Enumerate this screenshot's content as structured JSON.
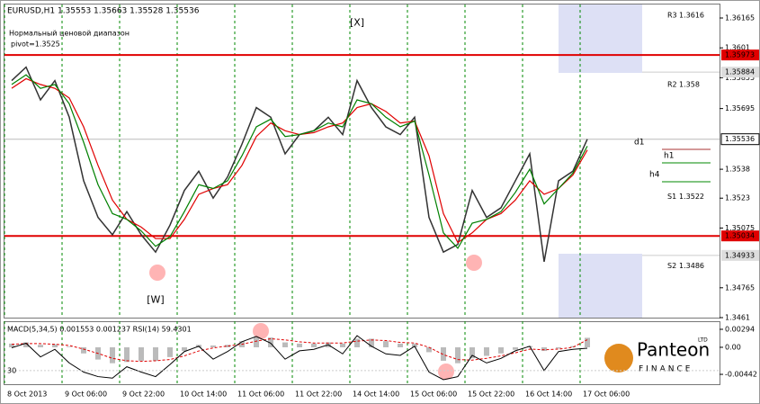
{
  "chart_data": {
    "type": "line",
    "title": "EURUSD,H1 1.35553 1.35663 1.35528 1.35536",
    "note_top": "Нормальный ценовой диапазон",
    "pivot_note": "pivot=1.3525",
    "annotations": [
      {
        "text": "[X]",
        "index": 24,
        "value": 1.3614
      },
      {
        "text": "[W]",
        "index": 10,
        "value": 1.347
      }
    ],
    "categories": [
      "8 Oct 2013",
      null,
      null,
      null,
      "9 Oct 06:00",
      null,
      null,
      null,
      "9 Oct 22:00",
      null,
      null,
      null,
      "10 Oct 14:00",
      null,
      null,
      null,
      "11 Oct 06:00",
      null,
      null,
      null,
      "11 Oct 22:00",
      null,
      null,
      null,
      "14 Oct 14:00",
      null,
      null,
      null,
      "15 Oct 06:00",
      null,
      null,
      null,
      "15 Oct 22:00",
      null,
      null,
      null,
      "16 Oct 14:00",
      null,
      null,
      null,
      "17 Oct 06:00",
      null,
      null,
      null,
      null,
      null,
      null,
      null,
      null,
      null
    ],
    "series": [
      {
        "name": "Close",
        "color": "#333333",
        "values": [
          1.3584,
          1.3591,
          1.3574,
          1.3584,
          1.3565,
          1.3532,
          1.3513,
          1.3504,
          1.3516,
          1.3504,
          1.3495,
          1.3509,
          1.3527,
          1.3537,
          1.3523,
          1.3534,
          1.3551,
          1.357,
          1.3565,
          1.3546,
          1.3556,
          1.3558,
          1.3565,
          1.3556,
          1.3584,
          1.357,
          1.356,
          1.3556,
          1.3565,
          1.3513,
          1.3495,
          1.3499,
          1.3527,
          1.3513,
          1.3518,
          1.3532,
          1.3546,
          1.349,
          1.3532,
          1.3537,
          1.35536,
          null,
          null,
          null,
          null,
          null,
          null,
          null,
          null,
          null
        ]
      },
      {
        "name": "MA slow",
        "color": "#e00000",
        "values": [
          1.358,
          1.3585,
          1.3582,
          1.358,
          1.3575,
          1.356,
          1.354,
          1.3522,
          1.3512,
          1.3508,
          1.3502,
          1.3502,
          1.3512,
          1.3525,
          1.3528,
          1.353,
          1.354,
          1.3555,
          1.3562,
          1.3558,
          1.3556,
          1.3557,
          1.356,
          1.3562,
          1.357,
          1.3572,
          1.3568,
          1.3562,
          1.3563,
          1.3545,
          1.3515,
          1.35,
          1.3505,
          1.3512,
          1.3515,
          1.3522,
          1.3532,
          1.3525,
          1.3528,
          1.3535,
          1.3548,
          null,
          null,
          null,
          null,
          null,
          null,
          null,
          null,
          null
        ]
      },
      {
        "name": "MA fast",
        "color": "#008000",
        "values": [
          1.3582,
          1.3587,
          1.358,
          1.3582,
          1.3572,
          1.3552,
          1.353,
          1.3515,
          1.3512,
          1.3506,
          1.3498,
          1.3503,
          1.3516,
          1.353,
          1.3528,
          1.3532,
          1.3545,
          1.356,
          1.3564,
          1.3555,
          1.3556,
          1.3558,
          1.3562,
          1.356,
          1.3574,
          1.3572,
          1.3565,
          1.356,
          1.3563,
          1.3535,
          1.3505,
          1.3497,
          1.351,
          1.3512,
          1.3516,
          1.3526,
          1.3538,
          1.352,
          1.3528,
          1.3536,
          1.355,
          null,
          null,
          null,
          null,
          null,
          null,
          null,
          null,
          null
        ]
      }
    ],
    "ylim": [
      1.3461,
      1.36235
    ],
    "yticks": [
      1.36165,
      1.3601,
      1.35855,
      1.35695,
      1.3538,
      1.3523,
      1.35075,
      1.34765,
      1.3461
    ],
    "levels": [
      1.35973,
      1.35034
    ],
    "level_color": "#e00000",
    "current_price": 1.35536,
    "zone_labels": [
      1.35884,
      1.34933
    ],
    "pivots": [
      {
        "name": "R3",
        "value": 1.3616
      },
      {
        "name": "R2",
        "value": 1.358
      },
      {
        "name": "S1",
        "value": 1.3522
      },
      {
        "name": "S2",
        "value": 1.3486
      }
    ],
    "timeframe_labels": [
      "d1",
      "h1",
      "h4"
    ],
    "indicator": {
      "title": "MACD(5,34,5) 0.001553 0.001237 RSI(14) 59.4301",
      "macd": [
        0.0006,
        0.0008,
        0.0004,
        0.0005,
        0.0001,
        -0.001,
        -0.002,
        -0.0026,
        -0.0024,
        -0.0022,
        -0.0022,
        -0.0016,
        -0.0006,
        0.0004,
        0.0003,
        0.0004,
        0.001,
        0.0016,
        0.0016,
        0.0008,
        0.0006,
        0.0006,
        0.0008,
        0.0006,
        0.0014,
        0.0014,
        0.001,
        0.0006,
        0.0006,
        -0.0008,
        -0.0022,
        -0.0026,
        -0.0018,
        -0.0014,
        -0.001,
        -0.0004,
        0.0002,
        -0.0006,
        -0.0002,
        0.0002,
        0.001553,
        null,
        null,
        null,
        null,
        null,
        null,
        null,
        null,
        null
      ],
      "signal": [
        0.0005,
        0.0006,
        0.0006,
        0.0005,
        0.0003,
        -0.0003,
        -0.001,
        -0.0018,
        -0.0022,
        -0.0023,
        -0.0022,
        -0.002,
        -0.0014,
        -0.0006,
        -0.0001,
        0.0002,
        0.0005,
        0.001,
        0.0014,
        0.0012,
        0.0009,
        0.0007,
        0.0007,
        0.0007,
        0.001,
        0.0012,
        0.0011,
        0.0008,
        0.0007,
        0.0,
        -0.0012,
        -0.002,
        -0.0021,
        -0.0018,
        -0.0014,
        -0.0009,
        -0.0003,
        -0.0004,
        -0.0003,
        0.0,
        0.001237,
        null,
        null,
        null,
        null,
        null,
        null,
        null,
        null,
        null
      ],
      "signal_color": "#e00000",
      "rsi": [
        60,
        66,
        48,
        58,
        40,
        28,
        22,
        20,
        35,
        28,
        22,
        38,
        55,
        62,
        45,
        55,
        68,
        75,
        66,
        45,
        56,
        58,
        64,
        52,
        76,
        62,
        52,
        50,
        62,
        28,
        18,
        22,
        50,
        40,
        46,
        56,
        62,
        30,
        55,
        58,
        59.4301,
        null,
        null,
        null,
        null,
        null,
        null,
        null,
        null,
        null
      ],
      "ylim": [
        -0.00603,
        0.00426
      ],
      "yticks": [
        0.00294,
        {
          "value": 0,
          "label": "0.00"
        },
        -0.00442
      ],
      "rsi_ylim": [
        12,
        95
      ],
      "rsi_ticks": [
        30
      ]
    },
    "logo": {
      "name": "Panteon",
      "sub": "FINANCE",
      "tag": "LTD"
    }
  }
}
